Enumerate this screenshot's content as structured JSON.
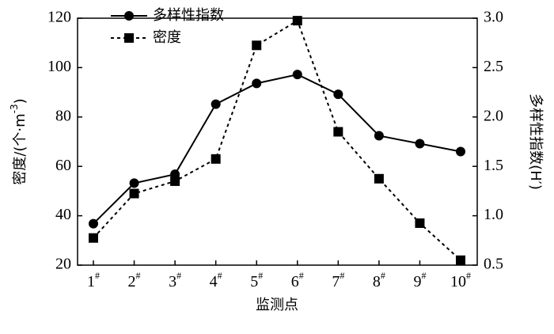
{
  "chart_data": {
    "type": "line",
    "x_label": "监测点",
    "y_label": "密度/(个·m-3)",
    "y2_label": "多样性指数(H′)",
    "categories": [
      "1#",
      "2#",
      "3#",
      "4#",
      "5#",
      "6#",
      "7#",
      "8#",
      "9#",
      "10#"
    ],
    "series": [
      {
        "name": "多样性指数",
        "color": "#000000",
        "marker": "circle",
        "dash": "solid",
        "axis": "y2",
        "values": [
          0.92,
          1.33,
          1.42,
          2.13,
          2.34,
          2.43,
          2.23,
          1.81,
          1.73,
          1.65
        ]
      },
      {
        "name": "密度",
        "color": "#000000",
        "marker": "square",
        "dash": "dotted",
        "values": [
          31,
          49,
          54,
          63,
          109,
          119,
          74,
          55,
          37,
          22
        ]
      }
    ],
    "ylim": [
      20,
      120
    ],
    "yticks": [
      20,
      40,
      60,
      80,
      100,
      120
    ],
    "y2lim": [
      0.5,
      3.0
    ],
    "y2ticks": [
      0.5,
      {
        "value": 1,
        "label": "1.0"
      },
      1.5,
      {
        "value": 2,
        "label": "2.0"
      },
      2.5,
      {
        "value": 3,
        "label": "3.0"
      }
    ],
    "legend": "top-left"
  }
}
